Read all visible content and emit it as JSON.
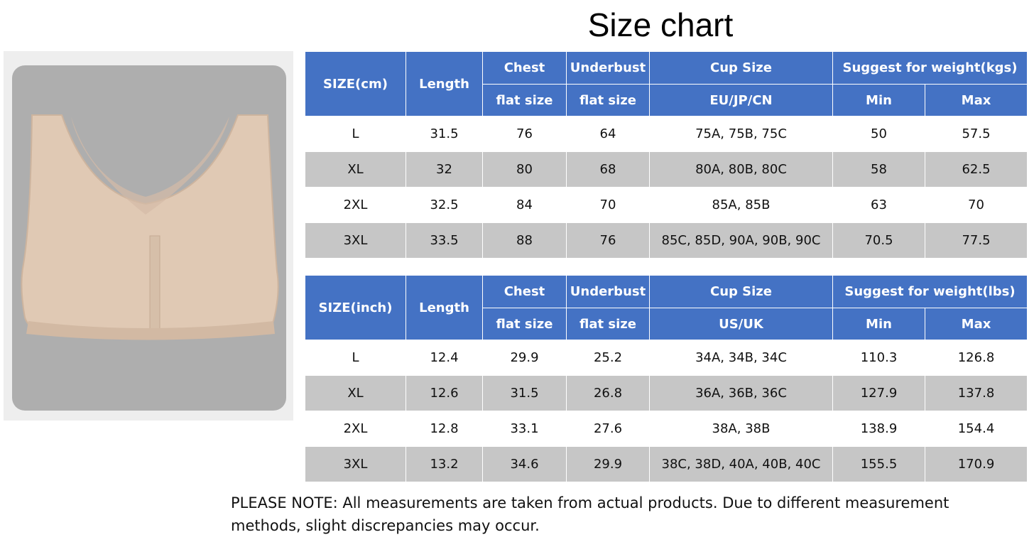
{
  "title": "Size chart",
  "tables": [
    {
      "header_top": [
        "SIZE(cm)",
        "Length",
        "Chest",
        "Underbust",
        "Cup Size",
        "Suggest for weight(kgs)"
      ],
      "header_bottom": [
        "flat size",
        "flat size",
        "EU/JP/CN",
        "Min",
        "Max"
      ],
      "rows": [
        [
          "L",
          "31.5",
          "76",
          "64",
          "75A, 75B, 75C",
          "50",
          "57.5"
        ],
        [
          "XL",
          "32",
          "80",
          "68",
          "80A, 80B, 80C",
          "58",
          "62.5"
        ],
        [
          "2XL",
          "32.5",
          "84",
          "70",
          "85A, 85B",
          "63",
          "70"
        ],
        [
          "3XL",
          "33.5",
          "88",
          "76",
          "85C, 85D, 90A, 90B, 90C",
          "70.5",
          "77.5"
        ]
      ]
    },
    {
      "header_top": [
        "SIZE(inch)",
        "Length",
        "Chest",
        "Underbust",
        "Cup Size",
        "Suggest for weight(lbs)"
      ],
      "header_bottom": [
        "flat size",
        "flat size",
        "US/UK",
        "Min",
        "Max"
      ],
      "rows": [
        [
          "L",
          "12.4",
          "29.9",
          "25.2",
          "34A, 34B, 34C",
          "110.3",
          "126.8"
        ],
        [
          "XL",
          "12.6",
          "31.5",
          "26.8",
          "36A, 36B, 36C",
          "127.9",
          "137.8"
        ],
        [
          "2XL",
          "12.8",
          "33.1",
          "27.6",
          "38A, 38B",
          "138.9",
          "154.4"
        ],
        [
          "3XL",
          "13.2",
          "34.6",
          "29.9",
          "38C, 38D, 40A, 40B, 40C",
          "155.5",
          "170.9"
        ]
      ]
    }
  ],
  "note": "PLEASE NOTE: All measurements are taken from actual products. Due to different measurement methods, slight discrepancies may occur."
}
